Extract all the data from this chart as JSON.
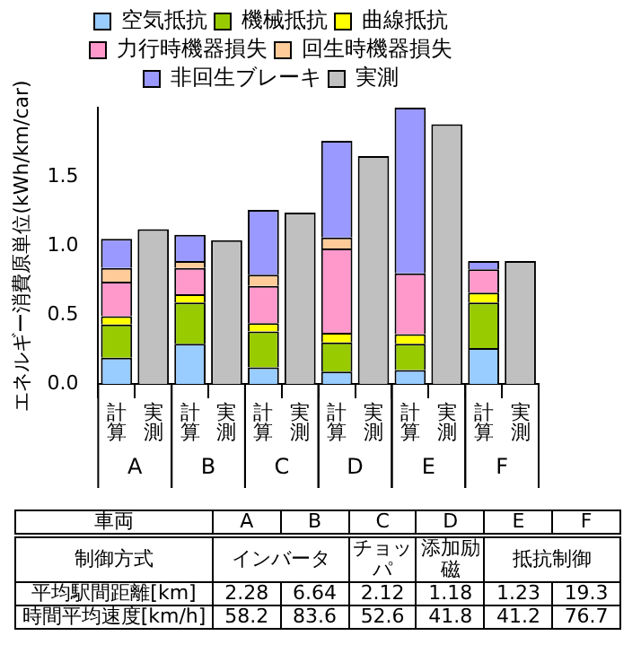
{
  "chart_data": {
    "type": "bar",
    "stacked": true,
    "ylabel": "エネルギー消費原単位(kWh/km/car)",
    "categories": [
      "計算",
      "実測",
      "計算",
      "実測",
      "計算",
      "実測",
      "計算",
      "実測",
      "計算",
      "実測",
      "計算",
      "実測"
    ],
    "series": [
      {
        "name": "空気抵抗",
        "color": "#99ccff",
        "values": [
          0.19,
          null,
          0.29,
          null,
          0.12,
          null,
          0.09,
          null,
          0.1,
          null,
          0.26,
          null
        ]
      },
      {
        "name": "機械抵抗",
        "color": "#99cc00",
        "values": [
          0.24,
          null,
          0.3,
          null,
          0.26,
          null,
          0.21,
          null,
          0.19,
          null,
          0.33,
          null
        ]
      },
      {
        "name": "曲線抵抗",
        "color": "#ffff00",
        "values": [
          0.06,
          null,
          0.06,
          null,
          0.06,
          null,
          0.07,
          null,
          0.07,
          null,
          0.07,
          null
        ]
      },
      {
        "name": "力行時機器損失",
        "color": "#ff99cc",
        "values": [
          0.25,
          null,
          0.19,
          null,
          0.27,
          null,
          0.61,
          null,
          0.44,
          null,
          0.17,
          null
        ]
      },
      {
        "name": "回生時機器損失",
        "color": "#ffcc99",
        "values": [
          0.1,
          null,
          0.05,
          null,
          0.08,
          null,
          0.08,
          null,
          0,
          null,
          0,
          null
        ]
      },
      {
        "name": "非回生ブレーキ",
        "color": "#9999ff",
        "values": [
          0.21,
          null,
          0.19,
          null,
          0.47,
          null,
          0.7,
          null,
          1.2,
          null,
          0.06,
          null
        ]
      },
      {
        "name": "実測",
        "color": "#c0c0c0",
        "values": [
          null,
          1.12,
          null,
          1.04,
          null,
          1.24,
          null,
          1.65,
          null,
          1.88,
          null,
          0.89
        ]
      }
    ],
    "ylim": [
      0,
      2
    ],
    "yticks": [
      {
        "value": 0,
        "label": "0.0"
      },
      0.5,
      {
        "value": 1,
        "label": "1.0"
      },
      1.5
    ],
    "grid": false,
    "legend": "top",
    "annotations": [
      "A",
      "B",
      "C",
      "D",
      "E",
      "F",
      "車両",
      "A",
      "B",
      "C",
      "D",
      "E",
      "F",
      "制御方式",
      "インバータ",
      "チョッパ",
      "添加励磁",
      "抵抗制御",
      "平均駅間距離[km]",
      "2.28",
      "6.64",
      "2.12",
      "1.18",
      "1.23",
      "19.3",
      "時間平均速度[km/h]",
      "58.2",
      "83.6",
      "52.6",
      "41.8",
      "41.2",
      "76.7"
    ]
  }
}
